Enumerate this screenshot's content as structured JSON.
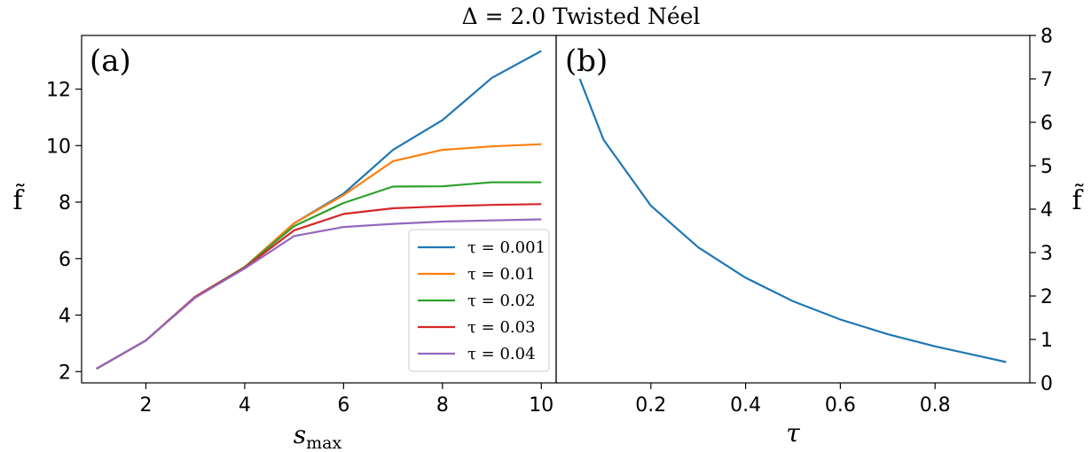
{
  "figure_title": "Δ = 2.0   Twisted Néel",
  "chart_data": [
    {
      "type": "line",
      "panel_label": "(a)",
      "xlabel": "s_max",
      "ylabel": "f̃",
      "xlim": [
        0.7,
        10.3
      ],
      "ylim": [
        1.6,
        13.9
      ],
      "xticks": [
        2,
        4,
        6,
        8,
        10
      ],
      "yticks": [
        2,
        4,
        6,
        8,
        10,
        12
      ],
      "grid": false,
      "legend_position": "lower-right",
      "x": [
        1,
        2,
        3,
        4,
        5,
        6,
        7,
        8,
        9,
        10
      ],
      "series": [
        {
          "name": "τ = 0.001",
          "color": "#1f77b4",
          "values": [
            2.1,
            3.1,
            4.65,
            5.7,
            7.25,
            8.3,
            9.85,
            10.9,
            12.4,
            13.35
          ]
        },
        {
          "name": "τ = 0.01",
          "color": "#ff7f0e",
          "values": [
            2.1,
            3.1,
            4.65,
            5.7,
            7.25,
            8.25,
            9.45,
            9.85,
            9.97,
            10.05
          ]
        },
        {
          "name": "τ = 0.02",
          "color": "#2ca02c",
          "values": [
            2.1,
            3.1,
            4.65,
            5.7,
            7.15,
            7.97,
            8.55,
            8.56,
            8.7,
            8.7
          ]
        },
        {
          "name": "τ = 0.03",
          "color": "#d62728",
          "values": [
            2.1,
            3.1,
            4.65,
            5.68,
            7.0,
            7.58,
            7.78,
            7.85,
            7.9,
            7.93
          ]
        },
        {
          "name": "τ = 0.04",
          "color": "#9467bd",
          "values": [
            2.1,
            3.1,
            4.62,
            5.65,
            6.8,
            7.12,
            7.23,
            7.31,
            7.35,
            7.39
          ]
        }
      ]
    },
    {
      "type": "line",
      "panel_label": "(b)",
      "xlabel": "τ",
      "ylabel": "f̃",
      "xlim": [
        0.0,
        1.0
      ],
      "ylim": [
        0,
        8
      ],
      "xticks": [
        0.2,
        0.4,
        0.6,
        0.8
      ],
      "yticks": [
        0,
        1,
        2,
        3,
        4,
        5,
        6,
        7,
        8
      ],
      "y_axis_side": "right",
      "grid": false,
      "x": [
        0.05,
        0.1,
        0.2,
        0.3,
        0.4,
        0.5,
        0.6,
        0.7,
        0.8,
        0.9,
        0.95
      ],
      "series": [
        {
          "color": "#1f77b4",
          "values": [
            7.0,
            5.6,
            4.08,
            3.12,
            2.42,
            1.88,
            1.46,
            1.12,
            0.84,
            0.6,
            0.48
          ]
        }
      ]
    }
  ]
}
